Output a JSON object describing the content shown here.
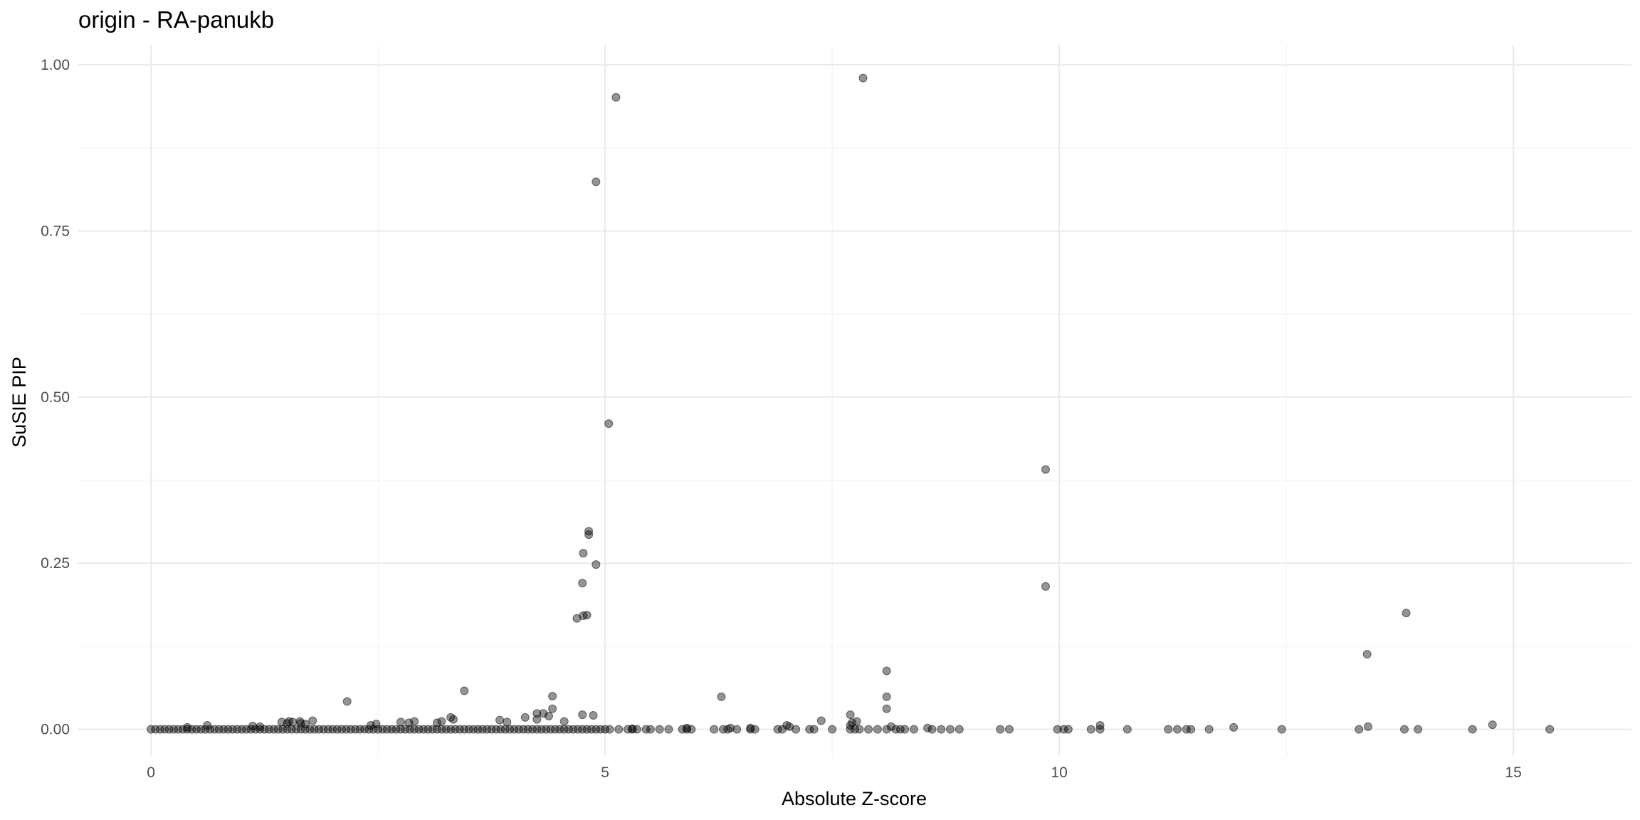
{
  "chart_data": {
    "type": "scatter",
    "title": "origin - RA-panukb",
    "xlabel": "Absolute Z-score",
    "ylabel": "SuSIE PIP",
    "xlim": [
      -0.8,
      16.3
    ],
    "ylim": [
      -0.04,
      1.03
    ],
    "x_ticks": [
      0,
      5,
      10,
      15
    ],
    "x_tick_labels": [
      "0",
      "5",
      "10",
      "15"
    ],
    "y_ticks": [
      0.0,
      0.25,
      0.5,
      0.75,
      1.0
    ],
    "y_tick_labels": [
      "0.00",
      "0.25",
      "0.50",
      "0.75",
      "1.00"
    ],
    "grid": true,
    "point_color": "#000000",
    "point_alpha": 0.42,
    "points": [
      [
        7.84,
        0.98
      ],
      [
        5.12,
        0.951
      ],
      [
        4.9,
        0.824
      ],
      [
        5.04,
        0.46
      ],
      [
        9.85,
        0.391
      ],
      [
        9.85,
        0.215
      ],
      [
        4.82,
        0.298
      ],
      [
        4.82,
        0.293
      ],
      [
        4.76,
        0.265
      ],
      [
        4.9,
        0.248
      ],
      [
        4.75,
        0.22
      ],
      [
        4.76,
        0.171
      ],
      [
        4.8,
        0.172
      ],
      [
        4.69,
        0.167
      ],
      [
        13.82,
        0.175
      ],
      [
        13.39,
        0.113
      ],
      [
        8.1,
        0.088
      ],
      [
        6.28,
        0.049
      ],
      [
        4.42,
        0.05
      ],
      [
        8.1,
        0.049
      ],
      [
        3.45,
        0.058
      ],
      [
        2.16,
        0.042
      ],
      [
        4.42,
        0.031
      ],
      [
        8.1,
        0.031
      ],
      [
        4.25,
        0.024
      ],
      [
        4.32,
        0.024
      ],
      [
        4.25,
        0.015
      ],
      [
        4.38,
        0.02
      ],
      [
        4.75,
        0.022
      ],
      [
        4.87,
        0.021
      ],
      [
        4.12,
        0.018
      ],
      [
        4.55,
        0.012
      ],
      [
        7.7,
        0.022
      ],
      [
        7.72,
        0.01
      ],
      [
        7.77,
        0.012
      ],
      [
        7.7,
        0.006
      ],
      [
        7.38,
        0.013
      ],
      [
        3.84,
        0.014
      ],
      [
        3.92,
        0.011
      ],
      [
        3.3,
        0.018
      ],
      [
        3.33,
        0.015
      ],
      [
        3.2,
        0.012
      ],
      [
        3.15,
        0.01
      ],
      [
        2.84,
        0.01
      ],
      [
        2.9,
        0.012
      ],
      [
        2.75,
        0.011
      ],
      [
        2.48,
        0.008
      ],
      [
        2.42,
        0.006
      ],
      [
        1.78,
        0.013
      ],
      [
        1.56,
        0.011
      ],
      [
        1.5,
        0.009
      ],
      [
        1.52,
        0.012
      ],
      [
        1.44,
        0.011
      ],
      [
        1.64,
        0.012
      ],
      [
        1.65,
        0.009
      ],
      [
        1.7,
        0.008
      ],
      [
        1.12,
        0.005
      ],
      [
        1.2,
        0.004
      ],
      [
        0.62,
        0.006
      ],
      [
        0.4,
        0.003
      ],
      [
        7.0,
        0.006
      ],
      [
        7.03,
        0.004
      ],
      [
        8.15,
        0.004
      ],
      [
        10.45,
        0.006
      ],
      [
        11.92,
        0.003
      ],
      [
        13.4,
        0.004
      ],
      [
        14.77,
        0.007
      ],
      [
        8.55,
        0.002
      ],
      [
        6.38,
        0.002
      ],
      [
        5.9,
        0.002
      ],
      [
        5.3,
        0.001
      ],
      [
        6.6,
        0.002
      ],
      [
        0.0,
        0.0
      ],
      [
        0.05,
        0.0
      ],
      [
        0.1,
        0.0
      ],
      [
        0.15,
        0.0
      ],
      [
        0.2,
        0.0
      ],
      [
        0.25,
        0.0
      ],
      [
        0.3,
        0.0
      ],
      [
        0.35,
        0.0
      ],
      [
        0.4,
        0.0
      ],
      [
        0.45,
        0.0
      ],
      [
        0.5,
        0.0
      ],
      [
        0.55,
        0.0
      ],
      [
        0.6,
        0.0
      ],
      [
        0.65,
        0.0
      ],
      [
        0.7,
        0.0
      ],
      [
        0.75,
        0.0
      ],
      [
        0.8,
        0.0
      ],
      [
        0.85,
        0.0
      ],
      [
        0.9,
        0.0
      ],
      [
        0.95,
        0.0
      ],
      [
        1.0,
        0.0
      ],
      [
        1.05,
        0.0
      ],
      [
        1.1,
        0.0
      ],
      [
        1.15,
        0.0
      ],
      [
        1.2,
        0.0
      ],
      [
        1.25,
        0.0
      ],
      [
        1.3,
        0.0
      ],
      [
        1.35,
        0.0
      ],
      [
        1.4,
        0.0
      ],
      [
        1.45,
        0.0
      ],
      [
        1.5,
        0.0
      ],
      [
        1.55,
        0.0
      ],
      [
        1.6,
        0.0
      ],
      [
        1.65,
        0.0
      ],
      [
        1.7,
        0.0
      ],
      [
        1.75,
        0.0
      ],
      [
        1.8,
        0.0
      ],
      [
        1.85,
        0.0
      ],
      [
        1.9,
        0.0
      ],
      [
        1.95,
        0.0
      ],
      [
        2.0,
        0.0
      ],
      [
        2.05,
        0.0
      ],
      [
        2.1,
        0.0
      ],
      [
        2.15,
        0.0
      ],
      [
        2.2,
        0.0
      ],
      [
        2.25,
        0.0
      ],
      [
        2.3,
        0.0
      ],
      [
        2.35,
        0.0
      ],
      [
        2.4,
        0.0
      ],
      [
        2.45,
        0.0
      ],
      [
        2.5,
        0.0
      ],
      [
        2.55,
        0.0
      ],
      [
        2.6,
        0.0
      ],
      [
        2.65,
        0.0
      ],
      [
        2.7,
        0.0
      ],
      [
        2.75,
        0.0
      ],
      [
        2.8,
        0.0
      ],
      [
        2.85,
        0.0
      ],
      [
        2.9,
        0.0
      ],
      [
        2.95,
        0.0
      ],
      [
        3.0,
        0.0
      ],
      [
        3.05,
        0.0
      ],
      [
        3.1,
        0.0
      ],
      [
        3.15,
        0.0
      ],
      [
        3.2,
        0.0
      ],
      [
        3.25,
        0.0
      ],
      [
        3.3,
        0.0
      ],
      [
        3.35,
        0.0
      ],
      [
        3.4,
        0.0
      ],
      [
        3.45,
        0.0
      ],
      [
        3.5,
        0.0
      ],
      [
        3.55,
        0.0
      ],
      [
        3.6,
        0.0
      ],
      [
        3.65,
        0.0
      ],
      [
        3.7,
        0.0
      ],
      [
        3.75,
        0.0
      ],
      [
        3.8,
        0.0
      ],
      [
        3.85,
        0.0
      ],
      [
        3.9,
        0.0
      ],
      [
        3.95,
        0.0
      ],
      [
        4.0,
        0.0
      ],
      [
        4.05,
        0.0
      ],
      [
        4.1,
        0.0
      ],
      [
        4.15,
        0.0
      ],
      [
        4.2,
        0.0
      ],
      [
        4.25,
        0.0
      ],
      [
        4.3,
        0.0
      ],
      [
        4.35,
        0.0
      ],
      [
        4.4,
        0.0
      ],
      [
        4.45,
        0.0
      ],
      [
        4.5,
        0.0
      ],
      [
        4.55,
        0.0
      ],
      [
        4.6,
        0.0
      ],
      [
        4.65,
        0.0
      ],
      [
        4.7,
        0.0
      ],
      [
        4.75,
        0.0
      ],
      [
        4.8,
        0.0
      ],
      [
        4.85,
        0.0
      ],
      [
        4.9,
        0.0
      ],
      [
        4.95,
        0.0
      ],
      [
        5.0,
        0.0
      ],
      [
        5.05,
        0.0
      ],
      [
        5.15,
        0.0
      ],
      [
        5.25,
        0.0
      ],
      [
        5.3,
        0.0
      ],
      [
        5.35,
        0.0
      ],
      [
        5.45,
        0.0
      ],
      [
        5.5,
        0.0
      ],
      [
        5.6,
        0.0
      ],
      [
        5.7,
        0.0
      ],
      [
        5.85,
        0.0
      ],
      [
        5.9,
        0.0
      ],
      [
        5.95,
        0.0
      ],
      [
        6.2,
        0.0
      ],
      [
        6.3,
        0.0
      ],
      [
        6.35,
        0.0
      ],
      [
        6.45,
        0.0
      ],
      [
        6.6,
        0.0
      ],
      [
        6.65,
        0.0
      ],
      [
        6.9,
        0.0
      ],
      [
        6.95,
        0.0
      ],
      [
        7.1,
        0.0
      ],
      [
        7.25,
        0.0
      ],
      [
        7.3,
        0.0
      ],
      [
        7.5,
        0.0
      ],
      [
        7.7,
        0.0
      ],
      [
        7.75,
        0.0
      ],
      [
        7.8,
        0.0
      ],
      [
        7.9,
        0.0
      ],
      [
        8.0,
        0.0
      ],
      [
        8.1,
        0.0
      ],
      [
        8.2,
        0.0
      ],
      [
        8.25,
        0.0
      ],
      [
        8.3,
        0.0
      ],
      [
        8.4,
        0.0
      ],
      [
        8.6,
        0.0
      ],
      [
        8.7,
        0.0
      ],
      [
        8.8,
        0.0
      ],
      [
        8.9,
        0.0
      ],
      [
        9.35,
        0.0
      ],
      [
        9.45,
        0.0
      ],
      [
        9.98,
        0.0
      ],
      [
        10.05,
        0.0
      ],
      [
        10.1,
        0.0
      ],
      [
        10.35,
        0.0
      ],
      [
        10.45,
        0.0
      ],
      [
        10.75,
        0.0
      ],
      [
        11.2,
        0.0
      ],
      [
        11.3,
        0.0
      ],
      [
        11.4,
        0.0
      ],
      [
        11.45,
        0.0
      ],
      [
        11.65,
        0.0
      ],
      [
        12.45,
        0.0
      ],
      [
        13.3,
        0.0
      ],
      [
        13.8,
        0.0
      ],
      [
        13.95,
        0.0
      ],
      [
        14.55,
        0.0
      ],
      [
        15.4,
        0.0
      ]
    ]
  }
}
